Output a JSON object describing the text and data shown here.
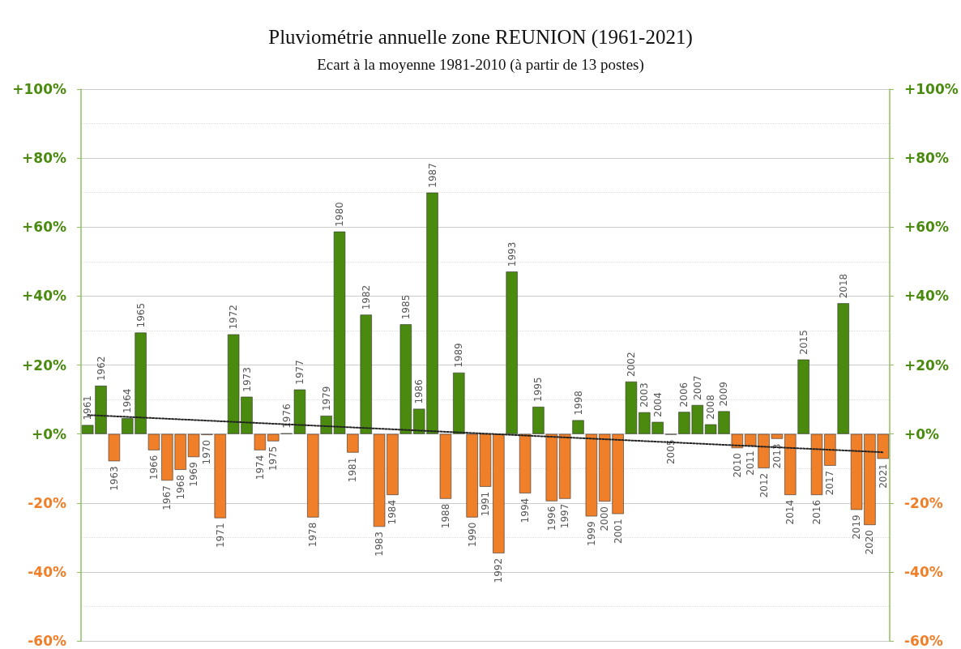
{
  "chart_data": {
    "type": "bar",
    "title": "Pluviométrie annuelle zone REUNION (1961-2021)",
    "subtitle": "Ecart à la moyenne 1981-2010 (à partir de 13 postes)",
    "categories": [
      "1961",
      "1962",
      "1963",
      "1964",
      "1965",
      "1966",
      "1967",
      "1968",
      "1969",
      "1970",
      "1971",
      "1972",
      "1973",
      "1974",
      "1975",
      "1976",
      "1977",
      "1978",
      "1979",
      "1980",
      "1981",
      "1982",
      "1983",
      "1984",
      "1985",
      "1986",
      "1987",
      "1988",
      "1989",
      "1990",
      "1991",
      "1992",
      "1993",
      "1994",
      "1995",
      "1996",
      "1997",
      "1998",
      "1999",
      "2000",
      "2001",
      "2002",
      "2003",
      "2004",
      "2005",
      "2006",
      "2007",
      "2008",
      "2009",
      "2010",
      "2011",
      "2012",
      "2013",
      "2014",
      "2015",
      "2016",
      "2017",
      "2018",
      "2019",
      "2020",
      "2021"
    ],
    "series": [
      {
        "values": [
          2.6,
          14,
          -7.9,
          4.6,
          29.4,
          -4.7,
          -13.5,
          -10.4,
          -6.7,
          -0.3,
          -24.4,
          28.9,
          10.8,
          -4.7,
          -2.1,
          0.2,
          12.9,
          -24.2,
          5.3,
          58.7,
          -5.4,
          34.6,
          -26.9,
          -17.7,
          31.8,
          7.3,
          70,
          -18.8,
          17.8,
          -24.2,
          -15.3,
          -34.6,
          47.1,
          -17.2,
          7.9,
          -19.5,
          -18.8,
          4,
          -23.9,
          -19.6,
          -23.2,
          15.2,
          6.3,
          3.5,
          -0.2,
          6.4,
          8.4,
          2.8,
          6.6,
          -4.1,
          -3.4,
          -9.9,
          -1.4,
          -17.7,
          21.6,
          -17.7,
          -9.2,
          37.9,
          -22,
          -26.4,
          -7.2
        ],
        "colors": [
          "#4a8a0e",
          "#4a8a0e",
          "#f07f2a",
          "#4a8a0e",
          "#4a8a0e",
          "#f07f2a",
          "#f07f2a",
          "#f07f2a",
          "#f07f2a",
          "#f07f2a",
          "#f07f2a",
          "#4a8a0e",
          "#4a8a0e",
          "#f07f2a",
          "#f07f2a",
          "#4a8a0e",
          "#4a8a0e",
          "#f07f2a",
          "#4a8a0e",
          "#4a8a0e",
          "#f07f2a",
          "#4a8a0e",
          "#f07f2a",
          "#f07f2a",
          "#4a8a0e",
          "#4a8a0e",
          "#4a8a0e",
          "#f07f2a",
          "#4a8a0e",
          "#f07f2a",
          "#f07f2a",
          "#f07f2a",
          "#4a8a0e",
          "#f07f2a",
          "#4a8a0e",
          "#f07f2a",
          "#f07f2a",
          "#4a8a0e",
          "#f07f2a",
          "#f07f2a",
          "#f07f2a",
          "#4a8a0e",
          "#4a8a0e",
          "#4a8a0e",
          "#f07f2a",
          "#4a8a0e",
          "#4a8a0e",
          "#4a8a0e",
          "#4a8a0e",
          "#f07f2a",
          "#f07f2a",
          "#f07f2a",
          "#f07f2a",
          "#f07f2a",
          "#4a8a0e",
          "#f07f2a",
          "#f07f2a",
          "#4a8a0e",
          "#f07f2a",
          "#f07f2a",
          "#f07f2a"
        ]
      },
      {
        "type": "line",
        "values": [
          5.5,
          null,
          null,
          null,
          null,
          null,
          null,
          null,
          null,
          null,
          null,
          null,
          null,
          null,
          null,
          null,
          null,
          null,
          null,
          null,
          null,
          null,
          null,
          null,
          null,
          null,
          null,
          null,
          null,
          null,
          null,
          null,
          null,
          null,
          null,
          null,
          null,
          null,
          null,
          null,
          null,
          null,
          null,
          null,
          null,
          null,
          null,
          null,
          null,
          null,
          null,
          null,
          null,
          null,
          null,
          null,
          null,
          null,
          null,
          null,
          -5.3
        ],
        "color": "#222222",
        "line_style": "dotted",
        "marker": "none"
      }
    ],
    "ylim": [
      -60,
      100
    ],
    "yticks": [
      {
        "value": -60,
        "label": "-60%"
      },
      {
        "value": -40,
        "label": "-40%"
      },
      {
        "value": -20,
        "label": "-20%"
      },
      {
        "value": 0,
        "label": "+0%"
      },
      {
        "value": 20,
        "label": "+20%"
      },
      {
        "value": 40,
        "label": "+40%"
      },
      {
        "value": 60,
        "label": "+60%"
      },
      {
        "value": 80,
        "label": "+80%"
      },
      {
        "value": 100,
        "label": "+100%"
      }
    ],
    "y2lim": [
      -60,
      100
    ],
    "y2ticks": [
      {
        "value": -60,
        "label": "-60%"
      },
      {
        "value": -40,
        "label": "-40%"
      },
      {
        "value": -20,
        "label": "-20%"
      },
      {
        "value": 0,
        "label": "+0%"
      },
      {
        "value": 20,
        "label": "+20%"
      },
      {
        "value": 40,
        "label": "+40%"
      },
      {
        "value": 60,
        "label": "+60%"
      },
      {
        "value": 80,
        "label": "+80%"
      },
      {
        "value": 100,
        "label": "+100%"
      }
    ],
    "grid": "y",
    "tick_labels": "y"
  }
}
